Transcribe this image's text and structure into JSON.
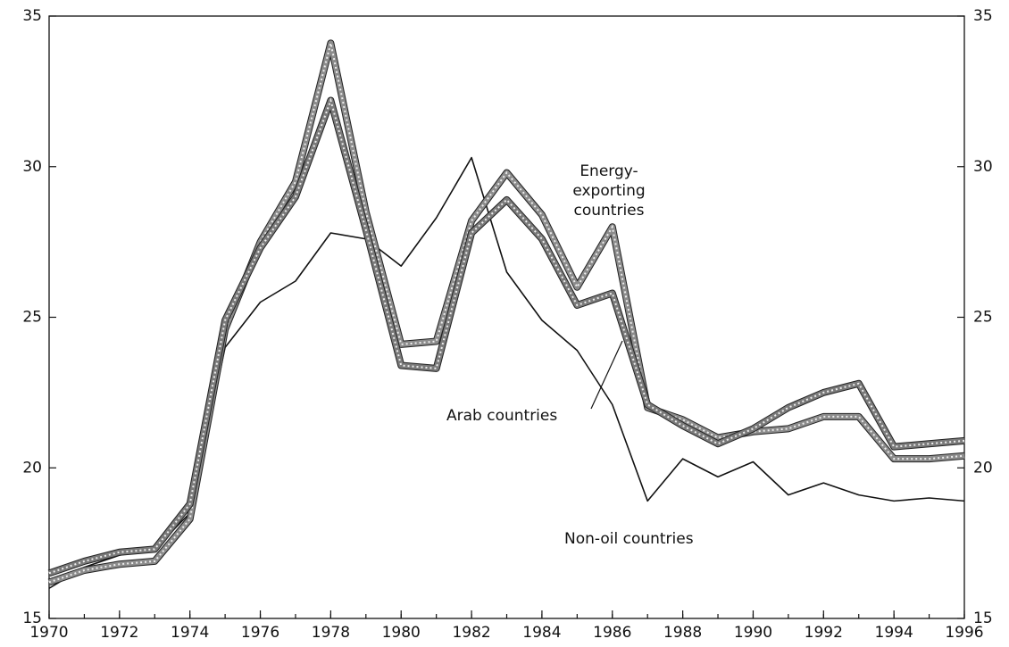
{
  "chart_data": {
    "type": "line",
    "x": [
      1970,
      1971,
      1972,
      1973,
      1974,
      1975,
      1976,
      1977,
      1978,
      1979,
      1980,
      1981,
      1982,
      1983,
      1984,
      1985,
      1986,
      1987,
      1988,
      1989,
      1990,
      1991,
      1992,
      1993,
      1994,
      1995,
      1996
    ],
    "series": [
      {
        "name": "Non-oil countries",
        "color": "#111111",
        "values": [
          16.0,
          16.7,
          17.1,
          17.3,
          18.5,
          24.0,
          25.5,
          26.2,
          27.8,
          27.6,
          26.7,
          28.3,
          30.3,
          26.5,
          24.9,
          23.9,
          22.1,
          18.9,
          20.3,
          19.7,
          20.2,
          19.1,
          19.5,
          19.1,
          18.9,
          19.0,
          18.9
        ]
      },
      {
        "name": "Energy-exporting countries",
        "color": "#8c8c8c",
        "values": [
          16.2,
          16.6,
          16.8,
          16.9,
          18.3,
          24.6,
          27.5,
          29.5,
          34.1,
          28.5,
          24.1,
          24.2,
          28.2,
          29.8,
          28.4,
          26.0,
          28.0,
          22.0,
          21.6,
          21.0,
          21.2,
          21.3,
          21.7,
          21.7,
          20.3,
          20.3,
          20.4
        ]
      },
      {
        "name": "Arab countries",
        "color": "#7a7a7a",
        "values": [
          16.5,
          16.9,
          17.2,
          17.3,
          18.8,
          24.9,
          27.3,
          29.0,
          32.2,
          27.9,
          23.4,
          23.3,
          27.8,
          28.9,
          27.6,
          25.4,
          25.8,
          22.1,
          21.4,
          20.8,
          21.3,
          22.0,
          22.5,
          22.8,
          20.7,
          20.8,
          20.9
        ]
      }
    ],
    "annotations": [
      {
        "lines": [
          "Energy-",
          "exporting",
          "countries"
        ]
      },
      {
        "lines": [
          "Arab countries"
        ]
      },
      {
        "lines": [
          "Non-oil countries"
        ]
      }
    ],
    "xlim": [
      1970,
      1996
    ],
    "xticks": [
      1970,
      1972,
      1974,
      1976,
      1978,
      1980,
      1982,
      1984,
      1986,
      1988,
      1990,
      1992,
      1994,
      1996
    ],
    "ylim": [
      15,
      35
    ],
    "yticks": [
      15,
      20,
      25,
      30,
      35
    ],
    "y2lim": [
      15,
      35
    ],
    "y2ticks": [
      15,
      20,
      25,
      30,
      35
    ]
  }
}
